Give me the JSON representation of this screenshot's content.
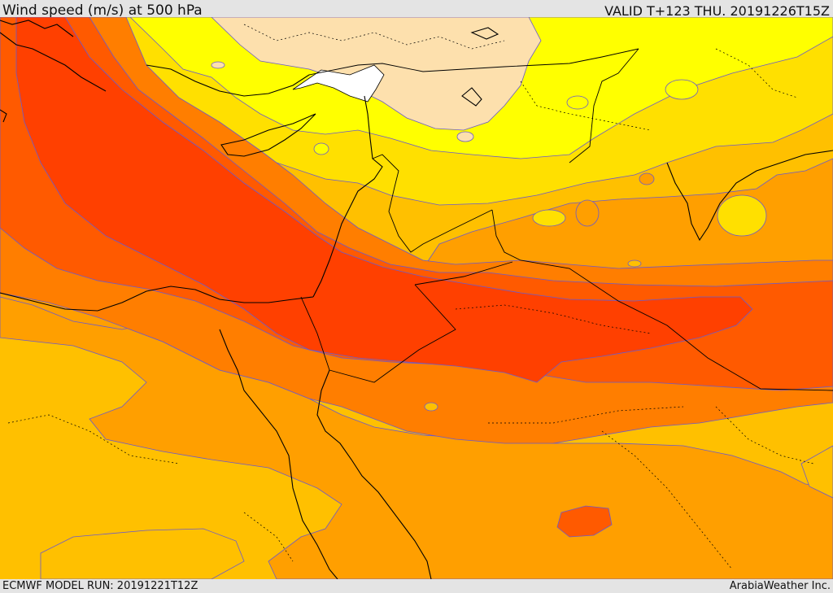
{
  "header": {
    "title": "Wind speed (m/s) at 500 hPa",
    "valid": "VALID T+123 THU. 20191226T15Z"
  },
  "footer": {
    "model_run": "ECMWF MODEL RUN: 20191221T12Z",
    "credit": "ArabiaWeather Inc."
  },
  "colors": {
    "band_weak": "#ffffff",
    "band_1": "#fde0ad",
    "band_2": "#ffff00",
    "band_3": "#ffe000",
    "band_4": "#ffc000",
    "band_5": "#ff9f00",
    "band_6": "#ff7e00",
    "band_7": "#ff5a00",
    "band_8": "#ff4000",
    "contour": "#6a5acd",
    "coastline": "#000000"
  }
}
